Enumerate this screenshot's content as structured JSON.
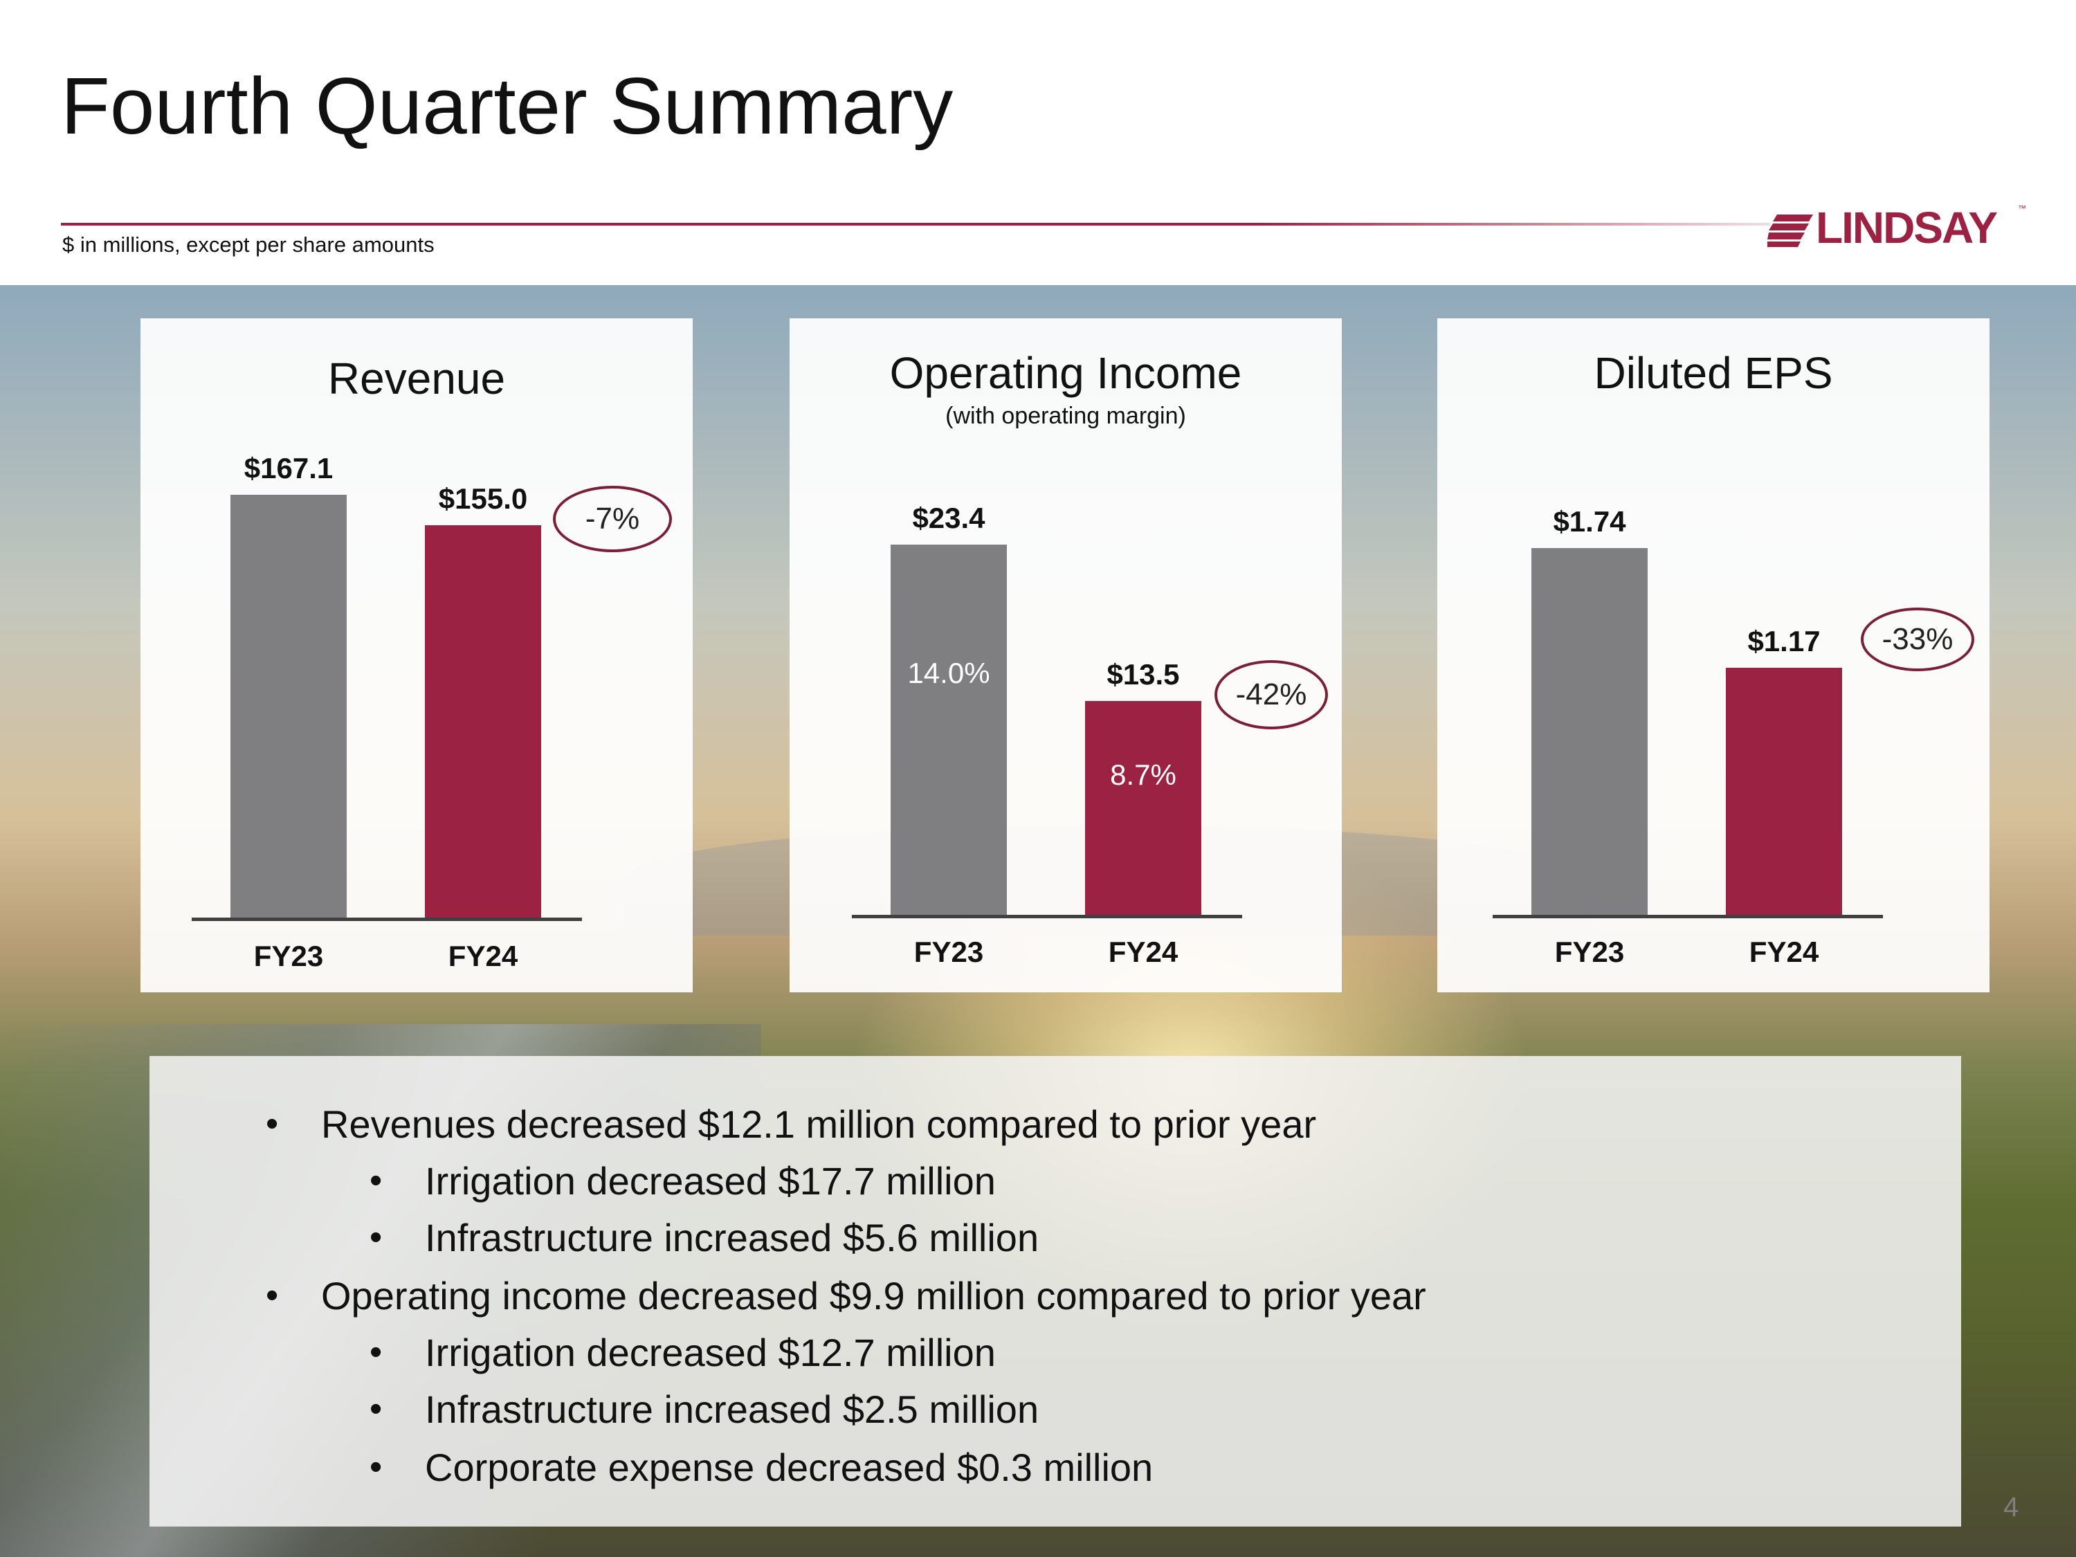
{
  "header": {
    "title": "Fourth Quarter Summary",
    "subnote": "$ in millions, except per share amounts",
    "logo_text": "LINDSAY",
    "logo_tm": "™"
  },
  "chart_data": [
    {
      "type": "bar",
      "title": "Revenue",
      "subtitle": "",
      "categories": [
        "FY23",
        "FY24"
      ],
      "values": [
        167.1,
        155.0
      ],
      "value_labels": [
        "$167.1",
        "$155.0"
      ],
      "ylim": [
        0,
        175
      ],
      "change_label": "-7%",
      "colors": [
        "#7f7f81",
        "#9b2242"
      ]
    },
    {
      "type": "bar",
      "title": "Operating Income",
      "subtitle": "(with operating margin)",
      "categories": [
        "FY23",
        "FY24"
      ],
      "values": [
        23.4,
        13.5
      ],
      "value_labels": [
        "$23.4",
        "$13.5"
      ],
      "inner_labels": [
        "14.0%",
        "8.7%"
      ],
      "ylim": [
        0,
        28
      ],
      "change_label": "-42%",
      "colors": [
        "#7f7f81",
        "#9b2242"
      ]
    },
    {
      "type": "bar",
      "title": "Diluted EPS",
      "subtitle": "",
      "categories": [
        "FY23",
        "FY24"
      ],
      "values": [
        1.74,
        1.17
      ],
      "value_labels": [
        "$1.74",
        "$1.17"
      ],
      "ylim": [
        0,
        2.1
      ],
      "change_label": "-33%",
      "colors": [
        "#7f7f81",
        "#9b2242"
      ]
    }
  ],
  "bullets": [
    {
      "level": 1,
      "text": "Revenues decreased $12.1 million compared to prior year"
    },
    {
      "level": 2,
      "text": "Irrigation decreased $17.7 million"
    },
    {
      "level": 2,
      "text": "Infrastructure increased $5.6 million"
    },
    {
      "level": 1,
      "text": "Operating income decreased $9.9 million compared to prior year"
    },
    {
      "level": 2,
      "text": "Irrigation decreased $12.7 million"
    },
    {
      "level": 2,
      "text": "Infrastructure increased $2.5 million"
    },
    {
      "level": 2,
      "text": "Corporate expense decreased $0.3 million"
    }
  ],
  "bullet_glyph": "•",
  "page_number": "4"
}
